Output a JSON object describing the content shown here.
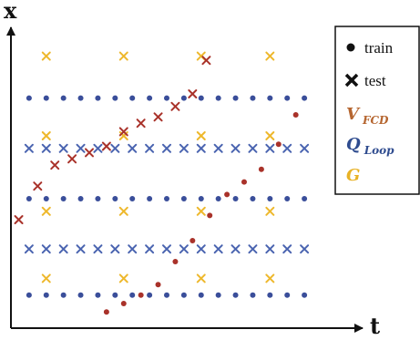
{
  "chart_data": {
    "type": "scatter",
    "x_axis_label": "t",
    "y_axis_label": "x",
    "xlim": [
      0,
      18
    ],
    "ylim": [
      0,
      7
    ],
    "legend_position": "top-right",
    "colors": {
      "train": "#3a4e9a",
      "test_marker": "#111111",
      "Q_Loop": "#4a64b0",
      "V_FCD": "#a9322a",
      "G": "#eeb82c",
      "V_FCD_label": "#b5652f",
      "Q_Loop_label": "#2f4c8f",
      "G_label": "#e8b226"
    },
    "legend": [
      {
        "key": "train",
        "marker": "dot",
        "label": "train"
      },
      {
        "key": "test",
        "marker": "cross",
        "label": "test"
      },
      {
        "key": "V_FCD",
        "symbol": "V",
        "subscript": "FCD"
      },
      {
        "key": "Q_Loop",
        "symbol": "Q",
        "subscript": "Loop"
      },
      {
        "key": "G",
        "symbol": "G",
        "subscript": ""
      }
    ],
    "series": [
      {
        "name": "train",
        "color_key": "train",
        "marker": "dot",
        "points": [
          [
            1,
            5.4
          ],
          [
            2,
            5.4
          ],
          [
            3,
            5.4
          ],
          [
            4,
            5.4
          ],
          [
            5,
            5.4
          ],
          [
            6,
            5.4
          ],
          [
            7,
            5.4
          ],
          [
            8,
            5.4
          ],
          [
            9,
            5.4
          ],
          [
            10,
            5.4
          ],
          [
            11,
            5.4
          ],
          [
            12,
            5.4
          ],
          [
            13,
            5.4
          ],
          [
            14,
            5.4
          ],
          [
            15,
            5.4
          ],
          [
            16,
            5.4
          ],
          [
            17,
            5.4
          ],
          [
            1,
            3.0
          ],
          [
            2,
            3.0
          ],
          [
            3,
            3.0
          ],
          [
            4,
            3.0
          ],
          [
            5,
            3.0
          ],
          [
            6,
            3.0
          ],
          [
            7,
            3.0
          ],
          [
            8,
            3.0
          ],
          [
            9,
            3.0
          ],
          [
            10,
            3.0
          ],
          [
            11,
            3.0
          ],
          [
            12,
            3.0
          ],
          [
            13,
            3.0
          ],
          [
            14,
            3.0
          ],
          [
            15,
            3.0
          ],
          [
            16,
            3.0
          ],
          [
            17,
            3.0
          ],
          [
            1,
            0.7
          ],
          [
            2,
            0.7
          ],
          [
            3,
            0.7
          ],
          [
            4,
            0.7
          ],
          [
            5,
            0.7
          ],
          [
            6,
            0.7
          ],
          [
            7,
            0.7
          ],
          [
            8,
            0.7
          ],
          [
            9,
            0.7
          ],
          [
            10,
            0.7
          ],
          [
            11,
            0.7
          ],
          [
            12,
            0.7
          ],
          [
            13,
            0.7
          ],
          [
            14,
            0.7
          ],
          [
            15,
            0.7
          ],
          [
            16,
            0.7
          ],
          [
            17,
            0.7
          ]
        ]
      },
      {
        "name": "test",
        "color_key": "Q_Loop",
        "marker": "cross",
        "points": [
          [
            1,
            4.2
          ],
          [
            2,
            4.2
          ],
          [
            3,
            4.2
          ],
          [
            4,
            4.2
          ],
          [
            5,
            4.2
          ],
          [
            6,
            4.2
          ],
          [
            7,
            4.2
          ],
          [
            8,
            4.2
          ],
          [
            9,
            4.2
          ],
          [
            10,
            4.2
          ],
          [
            11,
            4.2
          ],
          [
            12,
            4.2
          ],
          [
            13,
            4.2
          ],
          [
            14,
            4.2
          ],
          [
            15,
            4.2
          ],
          [
            16,
            4.2
          ],
          [
            17,
            4.2
          ],
          [
            1,
            1.8
          ],
          [
            2,
            1.8
          ],
          [
            3,
            1.8
          ],
          [
            4,
            1.8
          ],
          [
            5,
            1.8
          ],
          [
            6,
            1.8
          ],
          [
            7,
            1.8
          ],
          [
            8,
            1.8
          ],
          [
            9,
            1.8
          ],
          [
            10,
            1.8
          ],
          [
            11,
            1.8
          ],
          [
            12,
            1.8
          ],
          [
            13,
            1.8
          ],
          [
            14,
            1.8
          ],
          [
            15,
            1.8
          ],
          [
            16,
            1.8
          ],
          [
            17,
            1.8
          ]
        ]
      },
      {
        "name": "test",
        "color_key": "G",
        "marker": "cross",
        "points": [
          [
            2,
            6.4
          ],
          [
            2,
            4.5
          ],
          [
            2,
            2.7
          ],
          [
            2,
            1.1
          ],
          [
            6.5,
            6.4
          ],
          [
            6.5,
            4.5
          ],
          [
            6.5,
            2.7
          ],
          [
            6.5,
            1.1
          ],
          [
            11,
            6.4
          ],
          [
            11,
            4.5
          ],
          [
            11,
            2.7
          ],
          [
            11,
            1.1
          ],
          [
            15,
            6.4
          ],
          [
            15,
            4.5
          ],
          [
            15,
            2.7
          ],
          [
            15,
            1.1
          ]
        ]
      },
      {
        "name": "test",
        "color_key": "V_FCD",
        "marker": "cross",
        "points": [
          [
            0.4,
            2.5
          ],
          [
            1.5,
            3.3
          ],
          [
            2.5,
            3.8
          ],
          [
            3.5,
            3.95
          ],
          [
            4.5,
            4.1
          ],
          [
            5.5,
            4.25
          ],
          [
            6.5,
            4.6
          ],
          [
            7.5,
            4.8
          ],
          [
            8.5,
            4.95
          ],
          [
            9.5,
            5.2
          ],
          [
            10.5,
            5.5
          ],
          [
            11.3,
            6.3
          ]
        ]
      },
      {
        "name": "train",
        "color_key": "V_FCD",
        "marker": "dot",
        "points": [
          [
            5.5,
            0.3
          ],
          [
            6.5,
            0.5
          ],
          [
            7.5,
            0.7
          ],
          [
            8.5,
            0.95
          ],
          [
            9.5,
            1.5
          ],
          [
            10.5,
            2.0
          ],
          [
            11.5,
            2.6
          ],
          [
            12.5,
            3.1
          ],
          [
            13.5,
            3.4
          ],
          [
            14.5,
            3.7
          ],
          [
            15.5,
            4.3
          ],
          [
            16.5,
            5.0
          ]
        ]
      }
    ]
  }
}
